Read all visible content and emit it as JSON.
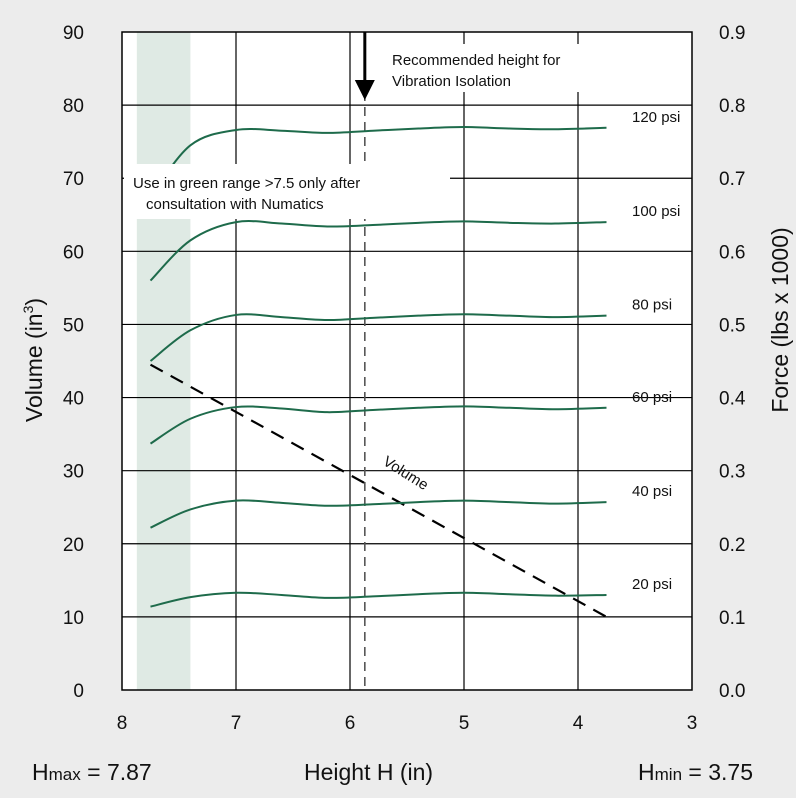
{
  "chart_data": {
    "type": "line",
    "xlabel": "Height H (in)",
    "ylabel": "Volume (in",
    "ylabel_sup": "3",
    "ylabel_end": ")",
    "y2label": "Force (lbs x 1000)",
    "xlim": [
      8,
      3
    ],
    "ylim": [
      0,
      90
    ],
    "y2lim": [
      0.0,
      0.9
    ],
    "x_ticks": [
      "8",
      "7",
      "6",
      "5",
      "4",
      "3"
    ],
    "y_ticks": [
      "0",
      "10",
      "20",
      "30",
      "40",
      "50",
      "60",
      "70",
      "80",
      "90"
    ],
    "y2_ticks": [
      "0.0",
      "0.1",
      "0.2",
      "0.3",
      "0.4",
      "0.5",
      "0.6",
      "0.7",
      "0.8",
      "0.9"
    ],
    "grid": true,
    "force_series_color": "#1e6b4b",
    "green_range_color": "#dfeae4",
    "green_range_x": [
      7.87,
      7.4
    ],
    "series": [
      {
        "name": "20 psi",
        "x": [
          7.75,
          7.4,
          7.0,
          6.6,
          6.2,
          5.8,
          5.4,
          5.0,
          4.6,
          4.2,
          3.75
        ],
        "force": [
          0.114,
          0.127,
          0.133,
          0.13,
          0.126,
          0.128,
          0.131,
          0.133,
          0.131,
          0.129,
          0.13
        ]
      },
      {
        "name": "40 psi",
        "x": [
          7.75,
          7.4,
          7.0,
          6.6,
          6.2,
          5.8,
          5.4,
          5.0,
          4.6,
          4.2,
          3.75
        ],
        "force": [
          0.222,
          0.247,
          0.259,
          0.256,
          0.252,
          0.254,
          0.257,
          0.259,
          0.257,
          0.255,
          0.257
        ]
      },
      {
        "name": "60 psi",
        "x": [
          7.75,
          7.4,
          7.0,
          6.6,
          6.2,
          5.8,
          5.4,
          5.0,
          4.6,
          4.2,
          3.75
        ],
        "force": [
          0.337,
          0.371,
          0.387,
          0.385,
          0.38,
          0.383,
          0.386,
          0.388,
          0.386,
          0.384,
          0.386
        ]
      },
      {
        "name": "80 psi",
        "x": [
          7.75,
          7.4,
          7.0,
          6.6,
          6.2,
          5.8,
          5.4,
          5.0,
          4.6,
          4.2,
          3.75
        ],
        "force": [
          0.45,
          0.492,
          0.513,
          0.51,
          0.506,
          0.509,
          0.512,
          0.514,
          0.512,
          0.51,
          0.512
        ]
      },
      {
        "name": "100 psi",
        "x": [
          7.75,
          7.4,
          7.0,
          6.6,
          6.2,
          5.8,
          5.4,
          5.0,
          4.6,
          4.2,
          3.75
        ],
        "force": [
          0.56,
          0.615,
          0.64,
          0.638,
          0.634,
          0.636,
          0.639,
          0.641,
          0.639,
          0.638,
          0.64
        ]
      },
      {
        "name": "120 psi",
        "x": [
          7.75,
          7.4,
          7.0,
          6.6,
          6.2,
          5.8,
          5.4,
          5.0,
          4.6,
          4.2,
          3.75
        ],
        "force": [
          0.675,
          0.745,
          0.766,
          0.765,
          0.762,
          0.765,
          0.768,
          0.77,
          0.768,
          0.767,
          0.769
        ]
      }
    ],
    "volume": {
      "name": "Volume",
      "x": [
        7.75,
        3.75
      ],
      "y": [
        44.5,
        10
      ]
    },
    "recommended_height": 5.87,
    "annotations": {
      "recommended": [
        "Recommended height for",
        "Vibration Isolation"
      ],
      "green_note": [
        "Use in green range  >7.5 only after",
        "consultation with Numatics"
      ]
    },
    "h_max": {
      "label": "H",
      "sub": "max",
      "value": " = 7.87"
    },
    "h_min": {
      "label": "H",
      "sub": "min",
      "value": " = 3.75"
    }
  }
}
